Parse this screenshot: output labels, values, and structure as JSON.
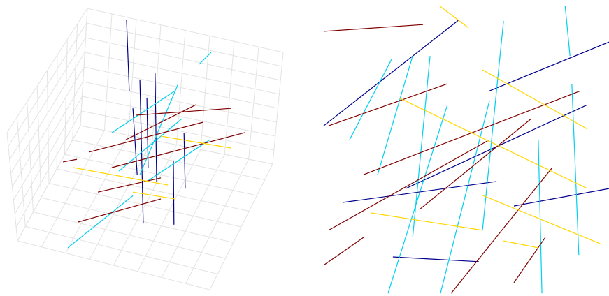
{
  "chart_data": [
    {
      "type": "segments",
      "xlim": [
        0,
        100
      ],
      "ylim": [
        0,
        100
      ],
      "grid": true,
      "series": [
        {
          "color": "#00008b",
          "segments": [
            [
              41.6,
              93.4,
              42.5,
              69.3
            ],
            [
              46,
              72.9,
              47.1,
              24.5
            ],
            [
              51,
              75.2,
              51.5,
              38.7
            ],
            [
              57,
              45.8,
              57.2,
              24.1
            ],
            [
              43.7,
              63.4,
              45.1,
              41
            ],
            [
              60.5,
              55.2,
              60.9,
              36.3
            ],
            [
              48.3,
              67,
              48.7,
              43.4
            ]
          ]
        },
        {
          "color": "#00d0f0",
          "segments": [
            [
              22.3,
              16.3,
              43.7,
              33.9
            ],
            [
              65.5,
              78.3,
              69.4,
              82.3
            ],
            [
              39.1,
              42.2,
              59.8,
              59.9
            ],
            [
              46,
              41,
              58.6,
              71.7
            ],
            [
              48.3,
              38.7,
              69,
              52.8
            ],
            [
              36.8,
              55.2,
              57.5,
              69.3
            ]
          ]
        },
        {
          "color": "#800000",
          "segments": [
            [
              25.7,
              25,
              52.9,
              32.8
            ],
            [
              29.2,
              48.6,
              66.7,
              58.7
            ],
            [
              44.8,
              61.1,
              75.9,
              63.4
            ],
            [
              32.2,
              35.1,
              52.9,
              39.9
            ],
            [
              36.8,
              43.4,
              80.5,
              55.2
            ],
            [
              20.7,
              45.3,
              25.3,
              46.2
            ],
            [
              41.4,
              52.8,
              64.4,
              64.6
            ]
          ]
        },
        {
          "color": "#ffd700",
          "segments": [
            [
              24.1,
              43.4,
              55.2,
              37.5
            ],
            [
              52.9,
              54,
              75.9,
              50
            ],
            [
              43.7,
              35.1,
              57.5,
              32.8
            ]
          ]
        }
      ]
    },
    {
      "type": "segments",
      "xlim": [
        0,
        100
      ],
      "ylim": [
        0,
        100
      ],
      "grid": false,
      "series": [
        {
          "color": "#00008b",
          "segments": [
            [
              6.4,
              57.5,
              50.9,
              93.4
            ],
            [
              33.3,
              36.3,
              92.9,
              64.6
            ],
            [
              68.8,
              30.4,
              100,
              36.3
            ],
            [
              29.1,
              13.2,
              57.3,
              11.6
            ],
            [
              60.8,
              69.3,
              100,
              85.8
            ],
            [
              12.6,
              31.6,
              63.1,
              38.7
            ]
          ]
        },
        {
          "color": "#00d0f0",
          "segments": [
            [
              85.6,
              98.1,
              87.2,
              81.1
            ],
            [
              14.9,
              52.8,
              28.7,
              80
            ],
            [
              27.5,
              0.9,
              47,
              64.6
            ],
            [
              44.7,
              0.9,
              60.8,
              66
            ],
            [
              65.4,
              92.9,
              58.5,
              22.2
            ],
            [
              76.8,
              52.8,
              78,
              0.9
            ],
            [
              87.8,
              71.7,
              90.1,
              13.9
            ],
            [
              35.6,
              19.8,
              41.3,
              81.1
            ],
            [
              24.1,
              41,
              35.6,
              81.1
            ]
          ]
        },
        {
          "color": "#800000",
          "segments": [
            [
              6.4,
              89.4,
              39,
              91.7
            ],
            [
              6.4,
              10.4,
              19.5,
              19.8
            ],
            [
              8,
              22.2,
              60.8,
              52.8
            ],
            [
              19.5,
              41,
              90.6,
              69.3
            ],
            [
              48.2,
              0.9,
              81.4,
              43.4
            ],
            [
              8,
              57.5,
              47,
              71.7
            ],
            [
              68.8,
              4.5,
              79.1,
              19.8
            ],
            [
              37.8,
              29.2,
              74.5,
              59.9
            ]
          ]
        },
        {
          "color": "#ffd700",
          "segments": [
            [
              44.3,
              98.1,
              53.9,
              90.6
            ],
            [
              31,
              67,
              92.9,
              36.3
            ],
            [
              21.8,
              28.1,
              58.5,
              22.2
            ],
            [
              58.5,
              34,
              97.5,
              17.5
            ],
            [
              58.5,
              76.4,
              92.9,
              56.4
            ],
            [
              65.4,
              18.6,
              76.8,
              16.3
            ]
          ]
        }
      ]
    }
  ]
}
